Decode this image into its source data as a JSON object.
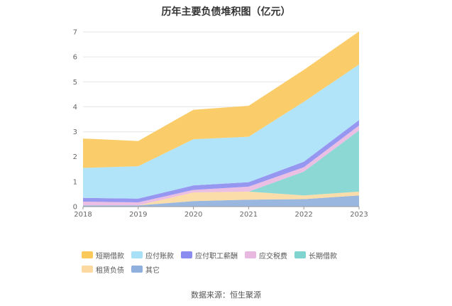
{
  "chart_data": {
    "type": "area",
    "stacked": true,
    "title": "历年主要负债堆积图（亿元）",
    "x": [
      "2018",
      "2019",
      "2020",
      "2021",
      "2022",
      "2023"
    ],
    "ylim": [
      0,
      7
    ],
    "yticks": [
      "0",
      "1",
      "2",
      "3",
      "4",
      "5",
      "6",
      "7"
    ],
    "grid": true,
    "legend_position": "bottom",
    "series": [
      {
        "name": "其它",
        "color": "#8fb0dc",
        "values": [
          0.05,
          0.05,
          0.22,
          0.28,
          0.3,
          0.45
        ]
      },
      {
        "name": "租赁负债",
        "color": "#fbd9a0",
        "values": [
          0.0,
          0.0,
          0.35,
          0.32,
          0.15,
          0.15
        ]
      },
      {
        "name": "长期借款",
        "color": "#7fd4d0",
        "values": [
          0.0,
          0.0,
          0.0,
          0.0,
          0.95,
          2.45
        ]
      },
      {
        "name": "应交税费",
        "color": "#e8b8e0",
        "values": [
          0.15,
          0.12,
          0.1,
          0.2,
          0.18,
          0.2
        ]
      },
      {
        "name": "应付职工薪酬",
        "color": "#8b8cf0",
        "values": [
          0.15,
          0.15,
          0.18,
          0.18,
          0.22,
          0.22
        ]
      },
      {
        "name": "应付账款",
        "color": "#a8e0f8",
        "values": [
          1.2,
          1.3,
          1.85,
          1.82,
          2.4,
          2.23
        ]
      },
      {
        "name": "短期借款",
        "color": "#fbc85a",
        "values": [
          1.18,
          1.01,
          1.18,
          1.24,
          1.28,
          1.32
        ]
      }
    ],
    "legend_order": [
      "短期借款",
      "应付账款",
      "应付职工薪酬",
      "应交税费",
      "长期借款",
      "租赁负债",
      "其它"
    ]
  },
  "source_note": "数据来源：恒生聚源"
}
